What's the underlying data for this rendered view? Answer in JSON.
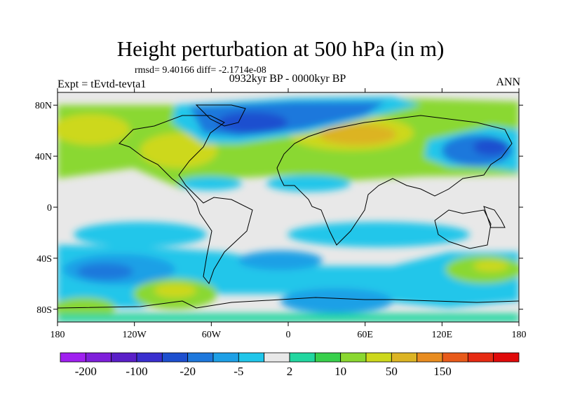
{
  "title": "Height perturbation at 500 hPa (in m)",
  "stats": "rmsd= 9.40166 diff= -2.1714e-08",
  "left_label": "Expt = tEvtd-tevta1",
  "center_label": "0932kyr BP - 0000kyr BP",
  "right_label": "ANN",
  "lat_ticks": [
    {
      "label": "80N",
      "value": 80
    },
    {
      "label": "40N",
      "value": 40
    },
    {
      "label": "0",
      "value": 0
    },
    {
      "label": "40S",
      "value": -40
    },
    {
      "label": "80S",
      "value": -80
    }
  ],
  "lon_ticks": [
    {
      "label": "180",
      "value": -180
    },
    {
      "label": "120W",
      "value": -120
    },
    {
      "label": "60W",
      "value": -60
    },
    {
      "label": "0",
      "value": 0
    },
    {
      "label": "60E",
      "value": 60
    },
    {
      "label": "120E",
      "value": 120
    },
    {
      "label": "180",
      "value": 180
    }
  ],
  "colorbar": {
    "colors": [
      "#a020f0",
      "#7f1fdb",
      "#5a1fc8",
      "#3a2fcf",
      "#1d4fcf",
      "#1e78dc",
      "#1ea0e6",
      "#20c6ea",
      "#e8e8e8",
      "#22d7a0",
      "#38d04c",
      "#8ad830",
      "#cdd81c",
      "#dcb424",
      "#e88c20",
      "#e85a1a",
      "#e62a12",
      "#e00a0a"
    ],
    "labels": [
      {
        "text": "-200",
        "boundary": 1
      },
      {
        "text": "-100",
        "boundary": 3
      },
      {
        "text": "-20",
        "boundary": 5
      },
      {
        "text": "-5",
        "boundary": 7
      },
      {
        "text": "2",
        "boundary": 9
      },
      {
        "text": "10",
        "boundary": 11
      },
      {
        "text": "50",
        "boundary": 13
      },
      {
        "text": "150",
        "boundary": 15
      }
    ]
  }
}
